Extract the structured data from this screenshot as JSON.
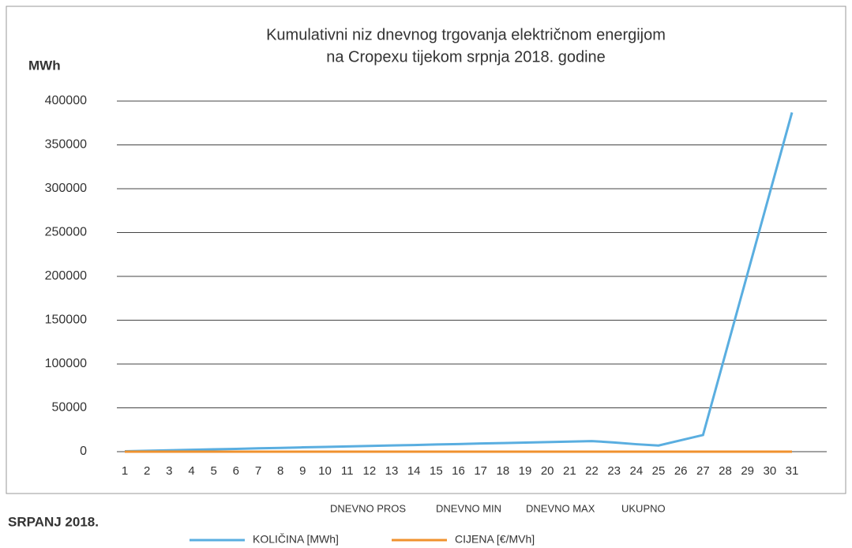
{
  "chart_data": {
    "type": "line",
    "title": [
      "Kumulativni niz dnevnog trgovanja električnom energijom",
      "na Cropexu tijekom srpnja 2018. godine"
    ],
    "y_label": "MWh",
    "annotations": [
      "DNEVNO PROS",
      "DNEVNO MIN",
      "DNEVNO MAX",
      "UKUPNO",
      "SRPANJ 2018."
    ],
    "categories": [
      "1",
      "2",
      "3",
      "4",
      "5",
      "6",
      "7",
      "8",
      "9",
      "10",
      "11",
      "12",
      "13",
      "14",
      "15",
      "16",
      "17",
      "18",
      "19",
      "20",
      "21",
      "22",
      "23",
      "24",
      "25",
      "26",
      "27",
      "28",
      "29",
      "30",
      "31"
    ],
    "series": [
      {
        "name": "KOLIČINA [MWh]",
        "color": "#5aaee0",
        "values": [
          500,
          1000,
          1600,
          2100,
          2700,
          3200,
          3800,
          4300,
          4900,
          5400,
          6000,
          6500,
          7100,
          7600,
          8200,
          8700,
          9300,
          9800,
          10400,
          10900,
          11500,
          12100,
          10500,
          8500,
          7000,
          13000,
          19000,
          111000,
          203000,
          295000,
          387000
        ]
      },
      {
        "name": "CIJENA [€/MVh]",
        "color": "#f0922e",
        "values": [
          50,
          50,
          50,
          50,
          50,
          50,
          50,
          50,
          50,
          50,
          50,
          50,
          50,
          50,
          50,
          50,
          50,
          50,
          50,
          50,
          50,
          50,
          50,
          50,
          50,
          50,
          50,
          50,
          50,
          50,
          50
        ]
      }
    ],
    "ylim": [
      0,
      400000
    ],
    "yticks": [
      0,
      50000,
      100000,
      150000,
      200000,
      250000,
      300000,
      350000,
      400000
    ],
    "grid": true
  }
}
